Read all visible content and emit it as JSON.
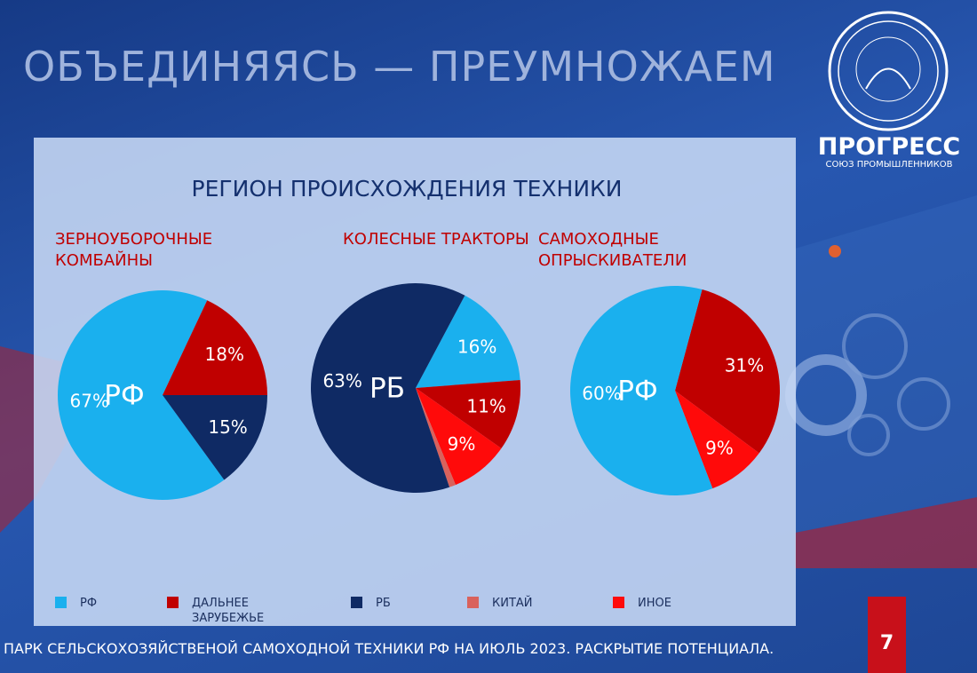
{
  "header": {
    "title": "ОБЪЕДИНЯЯСЬ — ПРЕУМНОЖАЕМ"
  },
  "logo": {
    "name": "ПРОГРЕСС",
    "subtitle": "СОЮЗ ПРОМЫШЛЕННИКОВ"
  },
  "panel_title": "РЕГИОН ПРОИСХОЖДЕНИЯ ТЕХНИКИ",
  "legend": {
    "categories": [
      "РФ",
      "ДАЛЬНЕЕ ЗАРУБЕЖЬЕ",
      "РБ",
      "КИТАЙ",
      "ИНОЕ"
    ],
    "colors": [
      "#1ab0ee",
      "#c00000",
      "#0f2a64",
      "#d9625c",
      "#ff0a0a"
    ]
  },
  "chart_data": [
    {
      "type": "pie",
      "title": "ЗЕРНОУБОРОЧНЫЕ КОМБАЙНЫ",
      "center_label": "РФ",
      "values": [
        67,
        18,
        15,
        null,
        null
      ],
      "value_labels": [
        "67%",
        "18%",
        "15%",
        null,
        null
      ]
    },
    {
      "type": "pie",
      "title": "КОЛЕСНЫЕ ТРАКТОРЫ",
      "center_label": "РБ",
      "values": [
        16,
        11,
        63,
        1,
        9
      ],
      "value_labels": [
        "16%",
        "11%",
        "63%",
        null,
        "9%"
      ]
    },
    {
      "type": "pie",
      "title": "САМОХОДНЫЕ ОПРЫСКИВАТЕЛИ",
      "center_label": "РФ",
      "values": [
        60,
        31,
        null,
        null,
        9
      ],
      "value_labels": [
        "60%",
        "31%",
        null,
        null,
        "9%"
      ]
    }
  ],
  "footer": {
    "text": "ПАРК СЕЛЬСКОХОЗЯЙСТВЕНОЙ САМОХОДНОЙ ТЕХНИКИ РФ НА ИЮЛЬ 2023. РАСКРЫТИЕ ПОТЕНЦИАЛА.",
    "page": "7"
  }
}
